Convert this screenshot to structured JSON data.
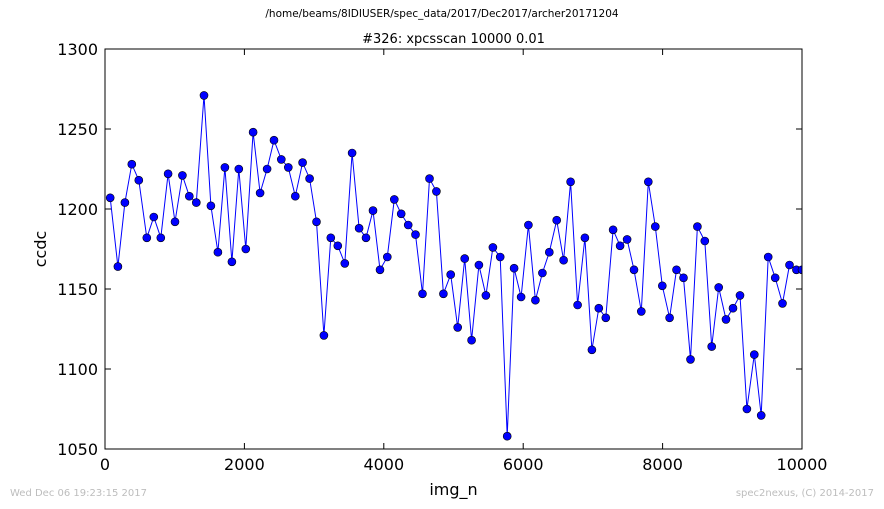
{
  "page": {
    "supertitle": "/home/beams/8IDIUSER/spec_data/2017/Dec2017/archer20171204",
    "timestamp": "Wed Dec 06 19:23:15 2017",
    "credit": "spec2nexus, (C) 2014-2017"
  },
  "colors": {
    "line": "#0000ff",
    "marker": "#0000ff",
    "footer_text": "#bdbdbd"
  },
  "chart_data": {
    "type": "line",
    "title": "#326: xpcsscan 10000 0.01",
    "xlabel": "img_n",
    "ylabel": "ccdc",
    "xlim": [
      0,
      10000
    ],
    "ylim": [
      1050,
      1300
    ],
    "xticks": [
      0,
      2000,
      4000,
      6000,
      8000,
      10000
    ],
    "yticks": [
      1050,
      1100,
      1150,
      1200,
      1250,
      1300
    ],
    "grid": false,
    "legend": "none",
    "series": [
      {
        "x": [
          75,
          185,
          285,
          385,
          485,
          600,
          700,
          800,
          905,
          1005,
          1110,
          1210,
          1310,
          1420,
          1520,
          1620,
          1720,
          1820,
          1920,
          2020,
          2125,
          2225,
          2325,
          2425,
          2530,
          2630,
          2730,
          2835,
          2935,
          3035,
          3140,
          3240,
          3340,
          3440,
          3545,
          3645,
          3745,
          3845,
          3945,
          4050,
          4150,
          4250,
          4350,
          4455,
          4555,
          4655,
          4755,
          4855,
          4960,
          5060,
          5160,
          5260,
          5365,
          5465,
          5565,
          5670,
          5770,
          5870,
          5970,
          6075,
          6175,
          6275,
          6375,
          6480,
          6580,
          6680,
          6780,
          6885,
          6985,
          7085,
          7185,
          7290,
          7390,
          7490,
          7590,
          7695,
          7795,
          7895,
          7995,
          8100,
          8200,
          8300,
          8400,
          8500,
          8605,
          8705,
          8805,
          8910,
          9010,
          9110,
          9210,
          9315,
          9415,
          9515,
          9615,
          9720,
          9820,
          9920,
          10000
        ],
        "values": [
          1207,
          1164,
          1204,
          1228,
          1218,
          1182,
          1195,
          1182,
          1222,
          1192,
          1221,
          1208,
          1204,
          1271,
          1202,
          1173,
          1226,
          1167,
          1225,
          1175,
          1248,
          1210,
          1225,
          1243,
          1231,
          1226,
          1208,
          1229,
          1219,
          1192,
          1121,
          1182,
          1177,
          1166,
          1235,
          1188,
          1182,
          1199,
          1162,
          1170,
          1206,
          1197,
          1190,
          1184,
          1147,
          1219,
          1211,
          1147,
          1159,
          1126,
          1169,
          1118,
          1165,
          1146,
          1176,
          1170,
          1058,
          1163,
          1145,
          1190,
          1143,
          1160,
          1173,
          1193,
          1168,
          1217,
          1140,
          1182,
          1112,
          1138,
          1132,
          1187,
          1177,
          1181,
          1162,
          1136,
          1217,
          1189,
          1152,
          1132,
          1162,
          1157,
          1106,
          1189,
          1180,
          1114,
          1151,
          1131,
          1138,
          1146,
          1075,
          1109,
          1071,
          1170,
          1157,
          1141,
          1165,
          1162,
          1162
        ]
      }
    ]
  }
}
